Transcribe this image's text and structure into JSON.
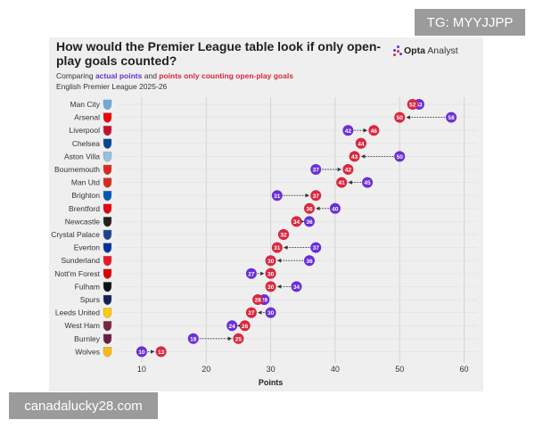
{
  "header": {
    "title": "How would the Premier League table look if only open-play goals counted?",
    "subtitle_prefix": "Comparing ",
    "subtitle_actual": "actual points",
    "subtitle_mid": " and ",
    "subtitle_openplay": "points only counting open-play goals",
    "league": "English Premier League 2025-26",
    "brand_bold": "Opta",
    "brand_light": "Analyst"
  },
  "overlays": {
    "telegram": "TG: MYYJJPP",
    "website": "canadalucky28.com"
  },
  "colors": {
    "actual": "#6a2fd6",
    "open_play": "#d8283f",
    "grid": "#d4d4d4",
    "text": "#333333"
  },
  "chart_data": {
    "type": "dot-comparison",
    "title": "How would the Premier League table look if only open-play goals counted?",
    "xlabel": "Points",
    "ylabel": "",
    "xlim": [
      6,
      62
    ],
    "xticks": [
      10,
      20,
      30,
      40,
      50,
      60
    ],
    "grid": true,
    "series": [
      {
        "name": "actual points",
        "color": "#6a2fd6"
      },
      {
        "name": "points only counting open-play goals",
        "color": "#d8283f"
      }
    ],
    "teams": [
      {
        "team": "Man City",
        "actual": 53,
        "open_play": 52
      },
      {
        "team": "Arsenal",
        "actual": 58,
        "open_play": 50
      },
      {
        "team": "Liverpool",
        "actual": 42,
        "open_play": 46
      },
      {
        "team": "Chelsea",
        "actual": 44,
        "open_play": 44
      },
      {
        "team": "Aston Villa",
        "actual": 50,
        "open_play": 43
      },
      {
        "team": "Bournemouth",
        "actual": 37,
        "open_play": 42
      },
      {
        "team": "Man Utd",
        "actual": 45,
        "open_play": 41
      },
      {
        "team": "Brighton",
        "actual": 31,
        "open_play": 37
      },
      {
        "team": "Brentford",
        "actual": 40,
        "open_play": 36
      },
      {
        "team": "Newcastle",
        "actual": 36,
        "open_play": 34
      },
      {
        "team": "Crystal Palace",
        "actual": 32,
        "open_play": 32
      },
      {
        "team": "Everton",
        "actual": 37,
        "open_play": 31
      },
      {
        "team": "Sunderland",
        "actual": 36,
        "open_play": 30
      },
      {
        "team": "Nott'm Forest",
        "actual": 27,
        "open_play": 30
      },
      {
        "team": "Fulham",
        "actual": 34,
        "open_play": 30
      },
      {
        "team": "Spurs",
        "actual": 29,
        "open_play": 28
      },
      {
        "team": "Leeds United",
        "actual": 30,
        "open_play": 27
      },
      {
        "team": "West Ham",
        "actual": 24,
        "open_play": 26
      },
      {
        "team": "Burnley",
        "actual": 18,
        "open_play": 25
      },
      {
        "team": "Wolves",
        "actual": 10,
        "open_play": 13
      }
    ]
  }
}
